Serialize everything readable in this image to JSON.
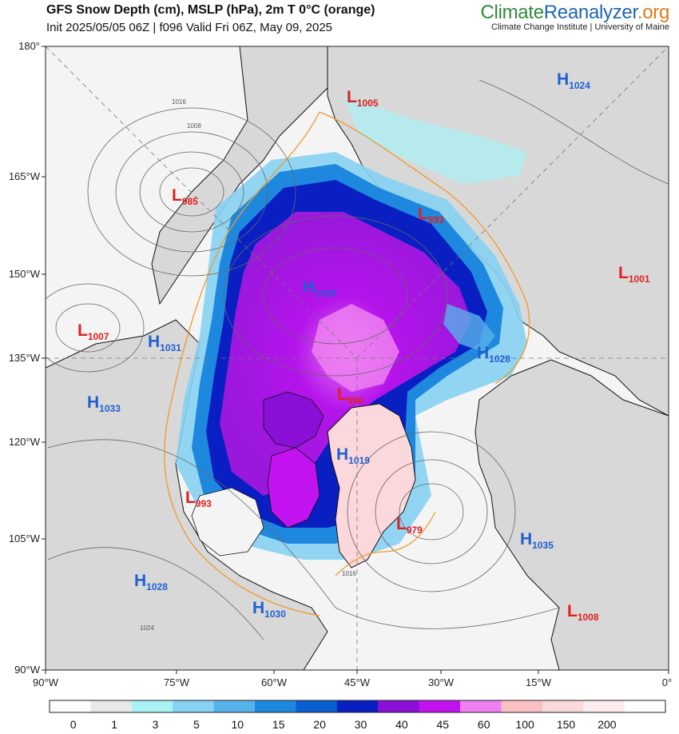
{
  "header": {
    "title": "GFS Snow Depth (cm), MSLP (hPa), 2m T 0°C (orange)",
    "subtitle": "Init 2025/05/05 06Z | f096 Valid Fri 06Z, May 09, 2025",
    "brand_part1": "Climate",
    "brand_part2": "Reanalyzer",
    "brand_part3": ".org",
    "brand_sub": "Climate Change Institute | University of Maine"
  },
  "colors": {
    "ocean": "#f4f4f4",
    "land": "#d6d6d6",
    "temp_line": "#ee9a2a",
    "high": "#1f5fd0",
    "low": "#e02020"
  },
  "axes": {
    "left_labels": [
      "180°",
      "165°W",
      "150°W",
      "135°W",
      "120°W",
      "105°W",
      "90°W"
    ],
    "bottom_labels": [
      "90°W",
      "75°W",
      "60°W",
      "45°W",
      "30°W",
      "15°W",
      "0°"
    ]
  },
  "pressure_systems": [
    {
      "type": "L",
      "value": "1005"
    },
    {
      "type": "H",
      "value": "1024"
    },
    {
      "type": "L",
      "value": "985"
    },
    {
      "type": "L",
      "value": "993"
    },
    {
      "type": "H",
      "value": "1029"
    },
    {
      "type": "L",
      "value": "1001"
    },
    {
      "type": "L",
      "value": "1007"
    },
    {
      "type": "H",
      "value": "1031"
    },
    {
      "type": "H",
      "value": "1028"
    },
    {
      "type": "L",
      "value": "994"
    },
    {
      "type": "H",
      "value": "1033"
    },
    {
      "type": "H",
      "value": "1019"
    },
    {
      "type": "L",
      "value": "993"
    },
    {
      "type": "L",
      "value": "979"
    },
    {
      "type": "H",
      "value": "1035"
    },
    {
      "type": "H",
      "value": "1028"
    },
    {
      "type": "H",
      "value": "1030"
    },
    {
      "type": "L",
      "value": "1008"
    }
  ],
  "isobar_labels": [
    "1016",
    "1008",
    "1016",
    "1024"
  ],
  "colorbar": {
    "labels": [
      "0",
      "1",
      "3",
      "5",
      "10",
      "15",
      "20",
      "30",
      "40",
      "45",
      "60",
      "100",
      "150",
      "200"
    ],
    "colors": [
      "#ffffff",
      "#e8e8e8",
      "#a8f2f6",
      "#86d2f2",
      "#58b2ea",
      "#1e88de",
      "#0a5fcf",
      "#0a1fc2",
      "#8a10d8",
      "#c312f0",
      "#ee80f2",
      "#fac0c4",
      "#fad8dc",
      "#fcecef",
      "#ffffff"
    ]
  }
}
